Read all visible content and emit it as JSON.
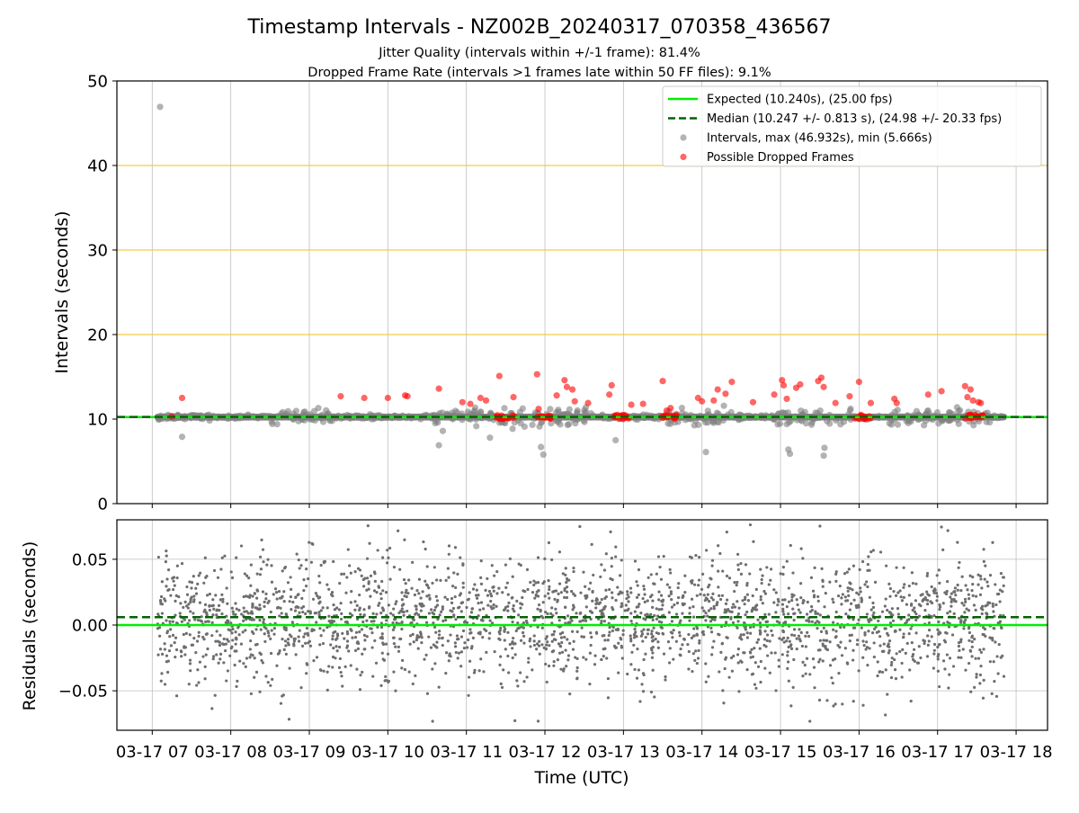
{
  "chart_data": [
    {
      "type": "scatter",
      "title": "Timestamp Intervals - NZ002B_20240317_070358_436567",
      "subtitle_1": "Jitter Quality (intervals within +/-1 frame): 81.4%",
      "subtitle_2": "Dropped Frame Rate (intervals >1 frames late within 50 FF files): 9.1%",
      "ylabel": "Intervals (seconds)",
      "ylim": [
        0,
        50
      ],
      "yticks": [
        "0",
        "10",
        "20",
        "30",
        "40",
        "50"
      ],
      "xlim_hours": [
        6.55,
        18.4
      ],
      "grid": true,
      "highlight_lines": [
        20,
        30,
        40
      ],
      "highlight_color": "#f5c842",
      "expected_interval": 10.24,
      "median_interval": 10.247,
      "start_hour": 7.066,
      "end_hour": 17.85,
      "max_interval": 46.932,
      "min_interval": 5.666,
      "legend_position": "top-right",
      "legend": [
        {
          "label": "Expected (10.240s), (25.00 fps)",
          "style": "solid-line",
          "color": "#00ee00"
        },
        {
          "label": "Median (10.247 +/- 0.813 s), (24.98 +/- 20.33 fps)",
          "style": "dashed-line",
          "color": "#006400"
        },
        {
          "label": "Intervals, max (46.932s), min (5.666s)",
          "style": "marker",
          "color": "#808080"
        },
        {
          "label": "Possible Dropped Frames",
          "style": "marker",
          "color": "#ff0000"
        }
      ],
      "outlier_points": [
        {
          "x": 7.1,
          "y": 46.93
        },
        {
          "x": 7.38,
          "y": 7.9
        },
        {
          "x": 10.65,
          "y": 6.9
        },
        {
          "x": 11.3,
          "y": 7.8
        },
        {
          "x": 11.95,
          "y": 6.7
        },
        {
          "x": 11.98,
          "y": 5.8
        },
        {
          "x": 12.9,
          "y": 7.5
        },
        {
          "x": 14.05,
          "y": 6.1
        },
        {
          "x": 15.1,
          "y": 6.4
        },
        {
          "x": 15.12,
          "y": 5.9
        },
        {
          "x": 15.55,
          "y": 5.67
        },
        {
          "x": 15.56,
          "y": 6.6
        }
      ],
      "dropped_frame_points": [
        {
          "x": 7.25,
          "y": 10.3
        },
        {
          "x": 7.38,
          "y": 12.5
        },
        {
          "x": 9.4,
          "y": 12.7
        },
        {
          "x": 9.7,
          "y": 12.5
        },
        {
          "x": 10.0,
          "y": 12.5
        },
        {
          "x": 10.22,
          "y": 12.8
        },
        {
          "x": 10.25,
          "y": 12.7
        },
        {
          "x": 10.65,
          "y": 13.6
        },
        {
          "x": 10.95,
          "y": 12.0
        },
        {
          "x": 11.05,
          "y": 11.8
        },
        {
          "x": 11.18,
          "y": 12.5
        },
        {
          "x": 11.25,
          "y": 12.2
        },
        {
          "x": 11.42,
          "y": 15.1
        },
        {
          "x": 11.6,
          "y": 12.6
        },
        {
          "x": 11.9,
          "y": 15.3
        },
        {
          "x": 11.92,
          "y": 11.2
        },
        {
          "x": 12.15,
          "y": 12.8
        },
        {
          "x": 12.25,
          "y": 14.6
        },
        {
          "x": 12.28,
          "y": 13.8
        },
        {
          "x": 12.35,
          "y": 13.5
        },
        {
          "x": 12.38,
          "y": 12.1
        },
        {
          "x": 12.55,
          "y": 11.9
        },
        {
          "x": 12.85,
          "y": 14.0
        },
        {
          "x": 12.82,
          "y": 12.9
        },
        {
          "x": 13.1,
          "y": 11.7
        },
        {
          "x": 13.25,
          "y": 11.8
        },
        {
          "x": 13.5,
          "y": 14.5
        },
        {
          "x": 13.55,
          "y": 11.0
        },
        {
          "x": 13.6,
          "y": 11.3
        },
        {
          "x": 13.95,
          "y": 12.5
        },
        {
          "x": 14.0,
          "y": 12.1
        },
        {
          "x": 14.15,
          "y": 12.2
        },
        {
          "x": 14.2,
          "y": 13.5
        },
        {
          "x": 14.3,
          "y": 13.0
        },
        {
          "x": 14.38,
          "y": 14.4
        },
        {
          "x": 14.65,
          "y": 12.0
        },
        {
          "x": 14.92,
          "y": 12.9
        },
        {
          "x": 15.02,
          "y": 14.6
        },
        {
          "x": 15.04,
          "y": 14.0
        },
        {
          "x": 15.08,
          "y": 12.4
        },
        {
          "x": 15.2,
          "y": 13.7
        },
        {
          "x": 15.25,
          "y": 14.1
        },
        {
          "x": 15.48,
          "y": 14.5
        },
        {
          "x": 15.52,
          "y": 14.9
        },
        {
          "x": 15.55,
          "y": 13.8
        },
        {
          "x": 15.7,
          "y": 11.9
        },
        {
          "x": 15.88,
          "y": 12.7
        },
        {
          "x": 16.0,
          "y": 14.4
        },
        {
          "x": 16.15,
          "y": 11.9
        },
        {
          "x": 16.45,
          "y": 12.4
        },
        {
          "x": 16.48,
          "y": 11.9
        },
        {
          "x": 16.88,
          "y": 12.9
        },
        {
          "x": 17.05,
          "y": 13.3
        },
        {
          "x": 17.35,
          "y": 13.9
        },
        {
          "x": 17.38,
          "y": 12.6
        },
        {
          "x": 17.42,
          "y": 13.5
        },
        {
          "x": 17.45,
          "y": 12.2
        },
        {
          "x": 17.52,
          "y": 12.0
        },
        {
          "x": 17.55,
          "y": 11.9
        }
      ],
      "dropped_frame_clusters": [
        {
          "x_start": 11.38,
          "x_end": 11.62,
          "y": 10.25
        },
        {
          "x_start": 11.9,
          "x_end": 12.08,
          "y": 10.25
        },
        {
          "x_start": 12.88,
          "x_end": 13.08,
          "y": 10.25
        },
        {
          "x_start": 13.48,
          "x_end": 13.68,
          "y": 10.25
        },
        {
          "x_start": 15.95,
          "x_end": 16.15,
          "y": 10.25
        },
        {
          "x_start": 17.35,
          "x_end": 17.58,
          "y": 10.25
        }
      ]
    },
    {
      "type": "scatter",
      "ylabel": "Residuals (seconds)",
      "xlabel": "Time (UTC)",
      "ylim": [
        -0.08,
        0.08
      ],
      "yticks": [
        "−0.05",
        "0.00",
        "0.05"
      ],
      "ytick_values": [
        -0.05,
        0.0,
        0.05
      ],
      "xlim_hours": [
        6.55,
        18.4
      ],
      "xticks": [
        "03-17 07",
        "03-17 08",
        "03-17 09",
        "03-17 10",
        "03-17 11",
        "03-17 12",
        "03-17 13",
        "03-17 14",
        "03-17 15",
        "03-17 16",
        "03-17 17",
        "03-17 18"
      ],
      "xtick_hours": [
        7,
        8,
        9,
        10,
        11,
        12,
        13,
        14,
        15,
        16,
        17,
        18
      ],
      "grid": true,
      "expected_residual": 0.0,
      "median_residual": 0.006,
      "residual_mean": 0.004,
      "residual_spread": 0.025,
      "marker_color": "#6e6e6e"
    }
  ]
}
